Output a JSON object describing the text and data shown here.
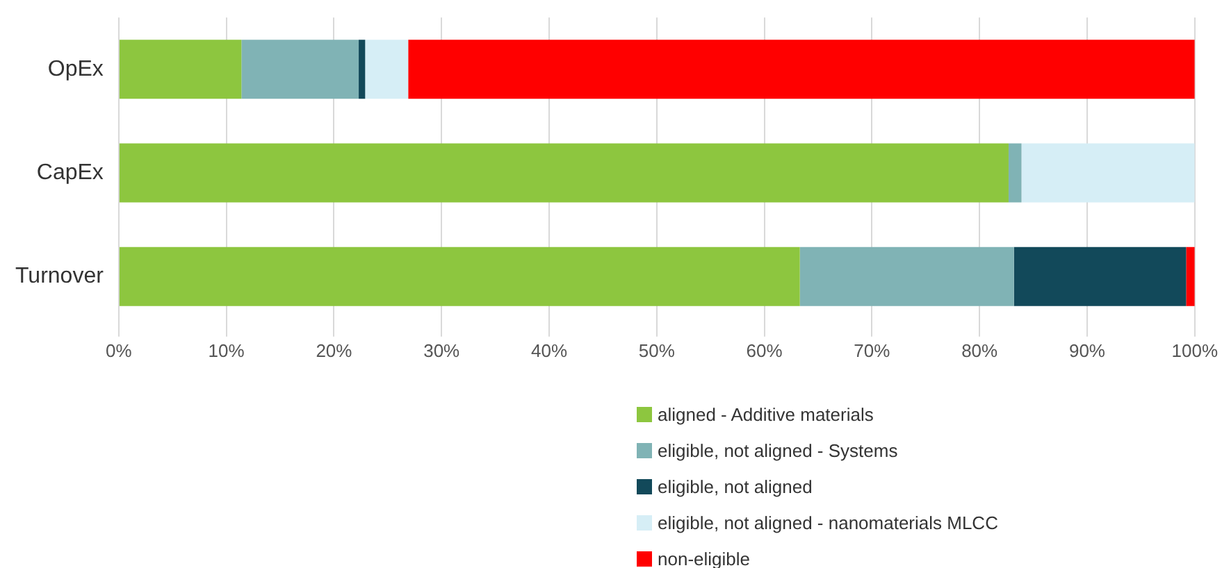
{
  "chart_data": {
    "type": "bar",
    "orientation": "horizontal",
    "stacked": true,
    "categories": [
      "OpEx",
      "CapEx",
      "Turnover"
    ],
    "series": [
      {
        "name": "aligned - Additive materials",
        "color": "#8dc63f",
        "values": [
          11.4,
          82.7,
          63.3
        ]
      },
      {
        "name": "eligible, not aligned - Systems",
        "color": "#80b3b5",
        "values": [
          10.9,
          1.2,
          19.9
        ]
      },
      {
        "name": "eligible, not aligned",
        "color": "#12495a",
        "values": [
          0.6,
          0,
          16.0
        ]
      },
      {
        "name": "eligible, not aligned - nanomaterials MLCC",
        "color": "#d6eef6",
        "values": [
          4.0,
          16.1,
          0
        ]
      },
      {
        "name": "non-eligible",
        "color": "#ff0000",
        "values": [
          73.1,
          0,
          0.8
        ]
      }
    ],
    "xlim": [
      0,
      100
    ],
    "xticks": [
      {
        "value": 0,
        "label": "0%"
      },
      {
        "value": 10,
        "label": "10%"
      },
      {
        "value": 20,
        "label": "20%"
      },
      {
        "value": 30,
        "label": "30%"
      },
      {
        "value": 40,
        "label": "40%"
      },
      {
        "value": 50,
        "label": "50%"
      },
      {
        "value": 60,
        "label": "60%"
      },
      {
        "value": 70,
        "label": "70%"
      },
      {
        "value": 80,
        "label": "80%"
      },
      {
        "value": 90,
        "label": "90%"
      },
      {
        "value": 100,
        "label": "100%"
      }
    ],
    "grid": "x",
    "legend": "bottom"
  }
}
